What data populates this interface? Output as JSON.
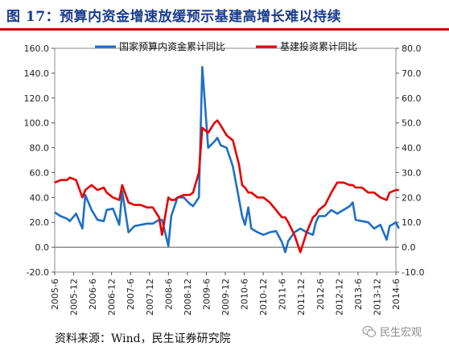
{
  "header": {
    "title": "图 17：预算内资金增速放缓预示基建高增长难以持续"
  },
  "footer": {
    "source": "资料来源：Wind，民生证券研究院",
    "watermark": "民生宏观"
  },
  "colors": {
    "title": "#1a3c8c",
    "rule": "#c00000",
    "series1": "#1f6fc5",
    "series2": "#e60000"
  },
  "chart_data": {
    "type": "line",
    "title": "",
    "legend_position": "top",
    "grid": false,
    "x_ticks": [
      "2005-6",
      "2005-12",
      "2006-6",
      "2006-12",
      "2007-6",
      "2007-12",
      "2008-6",
      "2008-12",
      "2009-6",
      "2009-12",
      "2010-6",
      "2010-12",
      "2011-6",
      "2011-12",
      "2012-6",
      "2012-12",
      "2013-6",
      "2013-12",
      "2014-6"
    ],
    "y_left": {
      "range": [
        -20,
        160
      ],
      "ticks": [
        "-20.0",
        "0.0",
        "20.0",
        "40.0",
        "60.0",
        "80.0",
        "100.0",
        "120.0",
        "140.0",
        "160.0"
      ]
    },
    "y_right": {
      "range": [
        -10,
        80
      ],
      "ticks": [
        "-10.0",
        "0.0",
        "10.0",
        "20.0",
        "30.0",
        "40.0",
        "50.0",
        "60.0",
        "70.0",
        "80.0"
      ]
    },
    "series": [
      {
        "name": "国家预算内资金累计同比",
        "axis": "left",
        "points": [
          [
            2005.42,
            28
          ],
          [
            2005.58,
            25
          ],
          [
            2005.75,
            23
          ],
          [
            2005.83,
            21
          ],
          [
            2006.0,
            27
          ],
          [
            2006.17,
            15
          ],
          [
            2006.25,
            42
          ],
          [
            2006.42,
            30
          ],
          [
            2006.58,
            22
          ],
          [
            2006.75,
            21
          ],
          [
            2006.83,
            30
          ],
          [
            2007.0,
            31
          ],
          [
            2007.17,
            18
          ],
          [
            2007.25,
            45
          ],
          [
            2007.42,
            12
          ],
          [
            2007.58,
            17
          ],
          [
            2007.75,
            18
          ],
          [
            2007.92,
            19
          ],
          [
            2008.08,
            19
          ],
          [
            2008.25,
            22
          ],
          [
            2008.33,
            22
          ],
          [
            2008.5,
            1
          ],
          [
            2008.58,
            25
          ],
          [
            2008.67,
            33
          ],
          [
            2008.75,
            40
          ],
          [
            2008.92,
            40
          ],
          [
            2009.08,
            35
          ],
          [
            2009.17,
            33
          ],
          [
            2009.33,
            40
          ],
          [
            2009.42,
            145
          ],
          [
            2009.58,
            80
          ],
          [
            2009.75,
            85
          ],
          [
            2009.83,
            88
          ],
          [
            2009.92,
            82
          ],
          [
            2010.08,
            80
          ],
          [
            2010.25,
            65
          ],
          [
            2010.42,
            38
          ],
          [
            2010.5,
            25
          ],
          [
            2010.58,
            18
          ],
          [
            2010.67,
            32
          ],
          [
            2010.75,
            15
          ],
          [
            2010.92,
            12
          ],
          [
            2011.08,
            10
          ],
          [
            2011.25,
            12
          ],
          [
            2011.42,
            13
          ],
          [
            2011.58,
            4
          ],
          [
            2011.67,
            -4
          ],
          [
            2011.75,
            5
          ],
          [
            2011.92,
            12
          ],
          [
            2012.08,
            15
          ],
          [
            2012.25,
            12
          ],
          [
            2012.42,
            10
          ],
          [
            2012.5,
            20
          ],
          [
            2012.58,
            25
          ],
          [
            2012.75,
            25
          ],
          [
            2012.92,
            30
          ],
          [
            2013.08,
            27
          ],
          [
            2013.25,
            30
          ],
          [
            2013.42,
            33
          ],
          [
            2013.5,
            36
          ],
          [
            2013.58,
            22
          ],
          [
            2013.75,
            21
          ],
          [
            2013.92,
            20
          ],
          [
            2014.08,
            15
          ],
          [
            2014.25,
            18
          ],
          [
            2014.42,
            6
          ],
          [
            2014.5,
            17
          ],
          [
            2014.67,
            20
          ],
          [
            2014.75,
            15
          ]
        ]
      },
      {
        "name": "基建投资累计同比",
        "axis": "right",
        "points": [
          [
            2005.42,
            26
          ],
          [
            2005.58,
            27
          ],
          [
            2005.75,
            27
          ],
          [
            2005.83,
            28
          ],
          [
            2006.0,
            27
          ],
          [
            2006.17,
            20
          ],
          [
            2006.25,
            23
          ],
          [
            2006.42,
            25
          ],
          [
            2006.58,
            23
          ],
          [
            2006.75,
            24
          ],
          [
            2006.83,
            22
          ],
          [
            2007.0,
            20
          ],
          [
            2007.17,
            19
          ],
          [
            2007.25,
            25
          ],
          [
            2007.42,
            18
          ],
          [
            2007.58,
            17
          ],
          [
            2007.75,
            17
          ],
          [
            2007.92,
            16
          ],
          [
            2008.08,
            16
          ],
          [
            2008.25,
            12
          ],
          [
            2008.33,
            5
          ],
          [
            2008.5,
            20
          ],
          [
            2008.58,
            19
          ],
          [
            2008.67,
            19
          ],
          [
            2008.75,
            20
          ],
          [
            2008.92,
            21
          ],
          [
            2009.08,
            21
          ],
          [
            2009.17,
            22
          ],
          [
            2009.33,
            30
          ],
          [
            2009.42,
            48
          ],
          [
            2009.58,
            46
          ],
          [
            2009.75,
            50
          ],
          [
            2009.83,
            51
          ],
          [
            2009.92,
            49
          ],
          [
            2010.08,
            45
          ],
          [
            2010.25,
            43
          ],
          [
            2010.42,
            33
          ],
          [
            2010.5,
            25
          ],
          [
            2010.58,
            24
          ],
          [
            2010.67,
            22
          ],
          [
            2010.75,
            22
          ],
          [
            2010.92,
            20
          ],
          [
            2011.08,
            20
          ],
          [
            2011.25,
            18
          ],
          [
            2011.42,
            15
          ],
          [
            2011.58,
            12
          ],
          [
            2011.67,
            12
          ],
          [
            2011.75,
            10
          ],
          [
            2011.92,
            5
          ],
          [
            2012.08,
            -2
          ],
          [
            2012.25,
            6
          ],
          [
            2012.42,
            12
          ],
          [
            2012.5,
            13
          ],
          [
            2012.58,
            15
          ],
          [
            2012.75,
            17
          ],
          [
            2012.92,
            22
          ],
          [
            2013.08,
            26
          ],
          [
            2013.25,
            26
          ],
          [
            2013.42,
            25
          ],
          [
            2013.5,
            25
          ],
          [
            2013.58,
            24
          ],
          [
            2013.75,
            24
          ],
          [
            2013.92,
            22
          ],
          [
            2014.08,
            22
          ],
          [
            2014.25,
            20
          ],
          [
            2014.42,
            19
          ],
          [
            2014.5,
            22
          ],
          [
            2014.67,
            23
          ],
          [
            2014.75,
            23
          ]
        ]
      }
    ]
  }
}
